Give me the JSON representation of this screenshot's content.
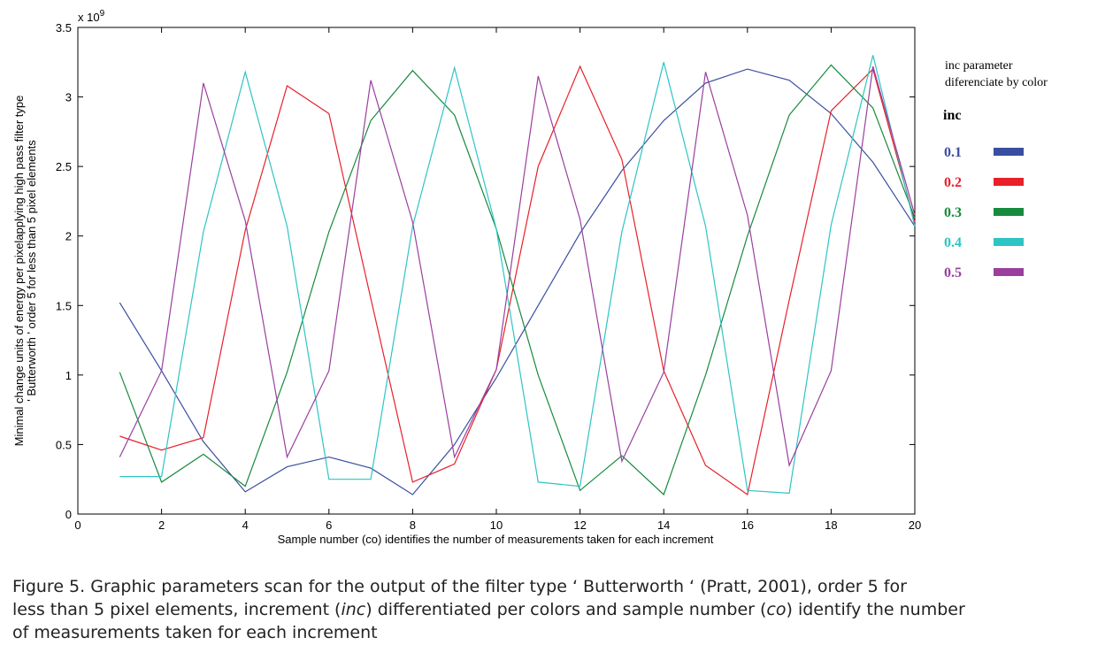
{
  "chart_data": {
    "type": "line",
    "xlabel": "Sample number (co) identifies the number of measurements taken for each increment",
    "ylabel_lines": [
      "Minimal change units of energy per pixelapplying high pass filter type",
      "' Butterworth ' order 5 for less than 5 pixel elements"
    ],
    "y_multiplier": "x 10",
    "y_exponent": "9",
    "xlim": [
      0,
      20
    ],
    "ylim": [
      0,
      3.5
    ],
    "xticks": [
      0,
      2,
      4,
      6,
      8,
      10,
      12,
      14,
      16,
      18,
      20
    ],
    "yticks": [
      0,
      0.5,
      1,
      1.5,
      2,
      2.5,
      3,
      3.5
    ],
    "ytick_labels": [
      "0",
      "0.5",
      "1",
      "1.5",
      "2",
      "2.5",
      "3",
      "3.5"
    ],
    "x": [
      1,
      2,
      3,
      4,
      5,
      6,
      7,
      8,
      9,
      10,
      11,
      12,
      13,
      14,
      15,
      16,
      17,
      18,
      19,
      20
    ],
    "grid": false,
    "legend_placement": "right-outside",
    "series": [
      {
        "name": "0.1",
        "color": "#3a4ea0",
        "values": [
          1.52,
          1.03,
          0.52,
          0.16,
          0.34,
          0.41,
          0.33,
          0.14,
          0.5,
          0.98,
          1.5,
          2.02,
          2.47,
          2.83,
          3.1,
          3.2,
          3.12,
          2.88,
          2.53,
          2.07
        ]
      },
      {
        "name": "0.2",
        "color": "#e8202a",
        "values": [
          0.56,
          0.46,
          0.55,
          2.04,
          3.08,
          2.88,
          1.55,
          0.23,
          0.36,
          1.04,
          2.5,
          3.22,
          2.55,
          1.03,
          0.35,
          0.14,
          1.54,
          2.9,
          3.2,
          2.1
        ]
      },
      {
        "name": "0.3",
        "color": "#178a3e",
        "values": [
          1.02,
          0.23,
          0.43,
          0.2,
          1.02,
          2.03,
          2.83,
          3.19,
          2.87,
          2.05,
          1.0,
          0.17,
          0.42,
          0.14,
          1.0,
          2.0,
          2.87,
          3.23,
          2.92,
          2.13
        ]
      },
      {
        "name": "0.4",
        "color": "#2ec4c4",
        "values": [
          0.27,
          0.27,
          2.03,
          3.18,
          2.07,
          0.25,
          0.25,
          2.07,
          3.21,
          2.05,
          0.23,
          0.2,
          2.03,
          3.25,
          2.07,
          0.17,
          0.15,
          2.08,
          3.3,
          2.07
        ]
      },
      {
        "name": "0.5",
        "color": "#9a3f9e",
        "values": [
          0.41,
          1.03,
          3.1,
          2.11,
          0.41,
          1.03,
          3.12,
          2.1,
          0.41,
          1.04,
          3.15,
          2.12,
          0.38,
          1.02,
          3.18,
          2.15,
          0.35,
          1.03,
          3.22,
          2.15
        ]
      }
    ]
  },
  "legend": {
    "title_line1": "inc parameter",
    "title_line2": "diferenciate by color",
    "heading": "inc"
  },
  "caption": {
    "line1": "Figure 5.  Graphic parameters scan for the output of the filter type ‘ Butterworth ‘ (Pratt, 2001), order 5 for",
    "line2_a": "less than 5 pixel elements, increment (",
    "line2_em1": "inc",
    "line2_b": ") differentiated per colors and sample number (",
    "line2_em2": "co",
    "line2_c": ") identify the number",
    "line3": "of measurements taken for each increment"
  }
}
